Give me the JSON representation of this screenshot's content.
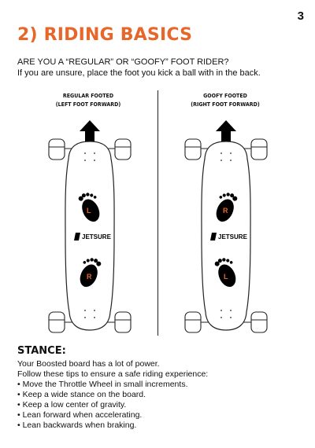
{
  "page_number": "3",
  "title": "2) RIDING BASICS",
  "question": "ARE YOU A “REGULAR” OR “GOOFY” FOOT RIDER?",
  "subtitle": "If you are unsure, place the foot you kick a ball with in the back.",
  "regular": {
    "title": "REGULAR FOOTED",
    "subtitle": "(LEFT FOOT FORWARD)",
    "front_foot": "L",
    "back_foot": "R"
  },
  "goofy": {
    "title": "GOOFY FOOTED",
    "subtitle": "(RIGHT FOOT FORWARD)",
    "front_foot": "R",
    "back_foot": "L"
  },
  "brand_logo": "JETSURE",
  "icons": [
    "arrow-up-icon",
    "footprint-icon",
    "jetsure-logo"
  ],
  "colors": {
    "accent": "#e8662a",
    "text": "#111111"
  },
  "stance": {
    "heading": "STANCE:",
    "intro_1": "Your Boosted board has a lot of power.",
    "intro_2": "Follow these tips to ensure a safe riding experience:",
    "tips": [
      "Move the Throttle Wheel in small increments.",
      "Keep a wide stance on the board.",
      "Keep a low center of gravity.",
      "Lean forward when accelerating.",
      "Lean backwards when braking."
    ]
  }
}
